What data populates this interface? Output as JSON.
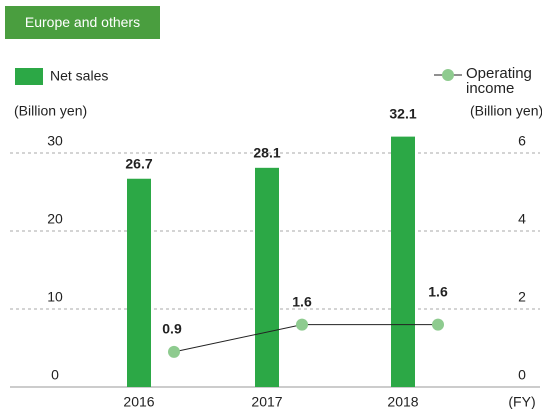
{
  "chart_data": {
    "type": "bar",
    "title": "Europe and others",
    "categories": [
      "2016",
      "2017",
      "2018"
    ],
    "series": [
      {
        "name": "Net sales",
        "color": "#2ca846",
        "type": "bar",
        "values": [
          26.7,
          28.1,
          32.1
        ]
      },
      {
        "name": "Operating income",
        "color": "#8ecb8f",
        "type": "line",
        "axis": "y2",
        "values": [
          0.9,
          1.6,
          1.6
        ]
      }
    ],
    "y_label": "(Billion yen)",
    "y2_label": "(Billion yen)",
    "x_label": "(FY)",
    "ylim": [
      0,
      30
    ],
    "yticks": [
      0,
      10,
      20,
      30
    ],
    "y2lim": [
      0,
      6
    ],
    "y2ticks": [
      0,
      2,
      4,
      6
    ],
    "grid": true
  }
}
